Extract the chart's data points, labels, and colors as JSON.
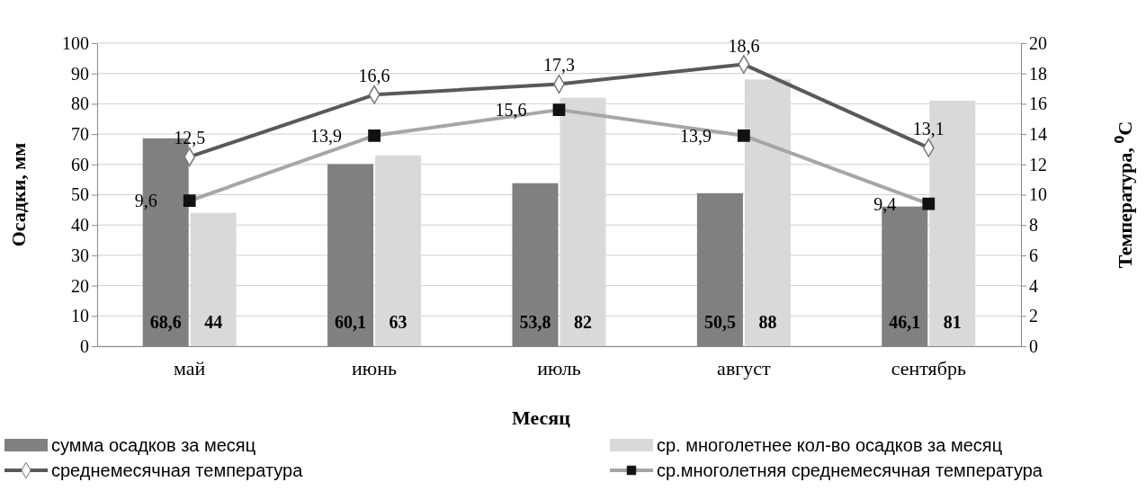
{
  "chart_data": {
    "type": "bar",
    "xlabel": "Месяц",
    "ylabel": "Осадки, мм",
    "y2label": "Температура, ⁰С",
    "categories": [
      "май",
      "июнь",
      "июль",
      "август",
      "сентябрь"
    ],
    "series": [
      {
        "name": "сумма осадков за месяц",
        "color": "#808080",
        "values": [
          68.6,
          60.1,
          53.8,
          50.5,
          46.1
        ],
        "value_labels": [
          "68,6",
          "60,1",
          "53,8",
          "50,5",
          "46,1"
        ]
      },
      {
        "name": "ср. многолетнее кол-во осадков за месяц",
        "color": "#d9d9d9",
        "values": [
          44,
          63,
          82,
          88,
          81
        ],
        "value_labels": [
          "44",
          "63",
          "82",
          "88",
          "81"
        ]
      },
      {
        "name": "среднемесячная температура",
        "type": "line",
        "axis": "y2",
        "color": "#595959",
        "marker": "diamond",
        "values": [
          12.5,
          16.6,
          17.3,
          18.6,
          13.1
        ],
        "value_labels": [
          "12,5",
          "16,6",
          "17,3",
          "18,6",
          "13,1"
        ]
      },
      {
        "name": "ср.многолетняя среднемесячная температура",
        "type": "line",
        "axis": "y2",
        "color": "#a6a6a6",
        "marker": "square",
        "values": [
          9.6,
          13.9,
          15.6,
          13.9,
          9.4
        ],
        "value_labels": [
          "9,6",
          "13,9",
          "15,6",
          "13,9",
          "9,4"
        ]
      }
    ],
    "ylim": [
      0,
      100
    ],
    "yticks": [
      0,
      10,
      20,
      30,
      40,
      50,
      60,
      70,
      80,
      90,
      100
    ],
    "y2lim": [
      0,
      20
    ],
    "y2ticks": [
      0,
      2,
      4,
      6,
      8,
      10,
      12,
      14,
      16,
      18,
      20
    ],
    "grid": "y",
    "legend": "bottom"
  }
}
